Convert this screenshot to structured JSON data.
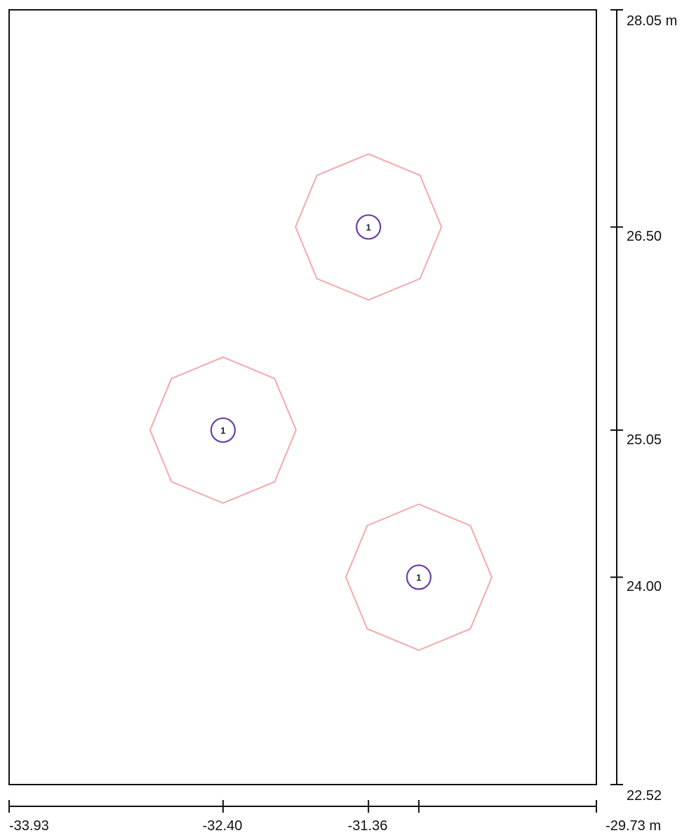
{
  "axes": {
    "x_ticks": [
      "-33.93",
      "-32.40",
      "-31.36",
      "-29.73 m"
    ],
    "y_ticks": [
      "28.05 m",
      "26.50",
      "25.05",
      "24.00",
      "22.52"
    ]
  },
  "extents": {
    "x_min": -33.93,
    "x_max": -29.73,
    "y_min": 22.52,
    "y_max": 28.05
  },
  "tick_marks": {
    "x": [
      -33.93,
      -32.4,
      -31.36,
      -31.0,
      -29.73
    ],
    "y": [
      28.05,
      26.5,
      25.05,
      24.0,
      22.52
    ]
  },
  "colors": {
    "outline": "#f4a9ac",
    "marker": "#6a3fa6",
    "frame": "#111111"
  },
  "elements": [
    {
      "x": -31.36,
      "y": 26.5,
      "label": "1"
    },
    {
      "x": -32.4,
      "y": 25.05,
      "label": "1"
    },
    {
      "x": -31.0,
      "y": 24.0,
      "label": "1"
    }
  ]
}
